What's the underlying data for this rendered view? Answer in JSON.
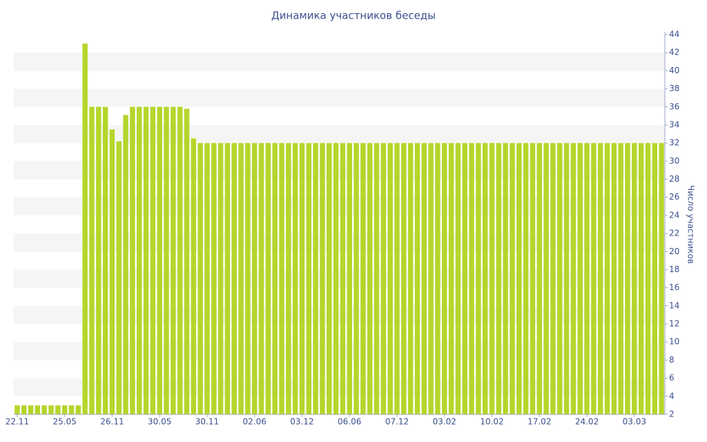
{
  "chart_data": {
    "type": "bar",
    "title": "Динамика участников беседы",
    "y_label": "Число участников",
    "categories": [
      "22.11",
      null,
      null,
      null,
      null,
      null,
      null,
      "25.05",
      null,
      null,
      null,
      null,
      null,
      null,
      "26.11",
      null,
      null,
      null,
      null,
      null,
      null,
      "30.05",
      null,
      null,
      null,
      null,
      null,
      null,
      "30.11",
      null,
      null,
      null,
      null,
      null,
      null,
      "02.06",
      null,
      null,
      null,
      null,
      null,
      null,
      "03.12",
      null,
      null,
      null,
      null,
      null,
      null,
      "06.06",
      null,
      null,
      null,
      null,
      null,
      null,
      "07.12",
      null,
      null,
      null,
      null,
      null,
      null,
      "03.02",
      null,
      null,
      null,
      null,
      null,
      null,
      "10.02",
      null,
      null,
      null,
      null,
      null,
      null,
      "17.02",
      null,
      null,
      null,
      null,
      null,
      null,
      "24.02",
      null,
      null,
      null,
      null,
      null,
      null,
      "03.03",
      null,
      null,
      null,
      null
    ],
    "values": [
      3,
      3,
      3,
      3,
      3,
      3,
      3,
      3,
      3,
      3,
      43,
      36,
      36,
      36,
      33.5,
      32.2,
      35.1,
      36,
      36,
      36,
      36,
      36,
      36,
      36,
      36,
      35.8,
      32.5,
      32,
      32,
      32,
      32,
      32,
      32,
      32,
      32,
      32,
      32,
      32,
      32,
      32,
      32,
      32,
      32,
      32,
      32,
      32,
      32,
      32,
      32,
      32,
      32,
      32,
      32,
      32,
      32,
      32,
      32,
      32,
      32,
      32,
      32,
      32,
      32,
      32,
      32,
      32,
      32,
      32,
      32,
      32,
      32,
      32,
      32,
      32,
      32,
      32,
      32,
      32,
      32,
      32,
      32,
      32,
      32,
      32,
      32,
      32,
      32,
      32,
      32,
      32,
      32,
      32,
      32,
      32,
      32,
      32
    ],
    "color": "#b5d62b",
    "ylim": [
      2,
      44
    ],
    "yticks": [
      2,
      4,
      6,
      8,
      10,
      12,
      14,
      16,
      18,
      20,
      22,
      24,
      26,
      28,
      30,
      32,
      34,
      36,
      38,
      40,
      42,
      44
    ],
    "y_axis_side": "right",
    "grid": "bands",
    "grid_color": "#f5f5f5"
  }
}
